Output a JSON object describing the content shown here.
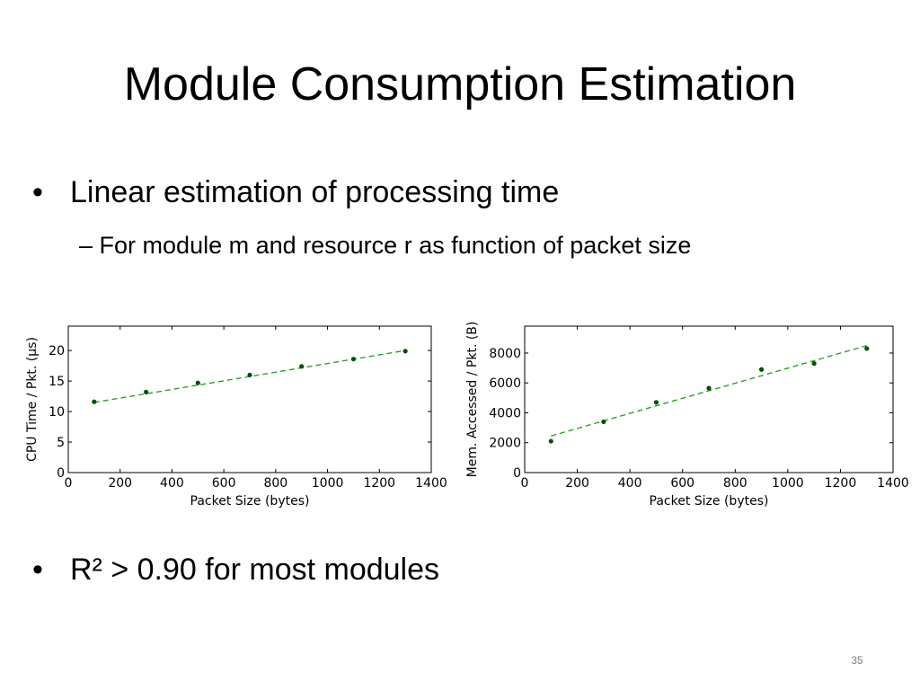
{
  "slide": {
    "title": "Module Consumption Estimation",
    "bullets": [
      {
        "marker": "•",
        "text": "Linear estimation of processing time"
      },
      {
        "marker": "•",
        "text": "R² > 0.90 for most modules"
      }
    ],
    "sub_bullet": {
      "marker": "–",
      "text": "For module m and resource r as function of packet size"
    },
    "page_number": "35"
  },
  "chart_data": [
    {
      "type": "scatter",
      "xlabel": "Packet Size (bytes)",
      "ylabel": "CPU Time / Pkt. (μs)",
      "xlim": [
        0,
        1400
      ],
      "ylim": [
        0,
        24
      ],
      "xticks": [
        0,
        200,
        400,
        600,
        800,
        1000,
        1200,
        1400
      ],
      "yticks": [
        0,
        5,
        10,
        15,
        20
      ],
      "grid": false,
      "points": [
        {
          "x": 100,
          "y": 11.6
        },
        {
          "x": 300,
          "y": 13.2
        },
        {
          "x": 500,
          "y": 14.7
        },
        {
          "x": 700,
          "y": 16.0
        },
        {
          "x": 900,
          "y": 17.4
        },
        {
          "x": 1100,
          "y": 18.6
        },
        {
          "x": 1300,
          "y": 19.9
        }
      ],
      "fit_line": [
        {
          "x": 100,
          "y": 11.5
        },
        {
          "x": 1300,
          "y": 20.0
        }
      ],
      "colors": {
        "points": "#0a4d0a",
        "fit": "#2ca02c"
      }
    },
    {
      "type": "scatter",
      "xlabel": "Packet Size (bytes)",
      "ylabel": "Mem. Accessed / Pkt. (B)",
      "xlim": [
        0,
        1400
      ],
      "ylim": [
        0,
        9800
      ],
      "xticks": [
        0,
        200,
        400,
        600,
        800,
        1000,
        1200,
        1400
      ],
      "yticks": [
        0,
        2000,
        4000,
        6000,
        8000
      ],
      "grid": false,
      "points": [
        {
          "x": 100,
          "y": 2100
        },
        {
          "x": 300,
          "y": 3400
        },
        {
          "x": 500,
          "y": 4700
        },
        {
          "x": 700,
          "y": 5650
        },
        {
          "x": 900,
          "y": 6900
        },
        {
          "x": 1100,
          "y": 7300
        },
        {
          "x": 1300,
          "y": 8300
        }
      ],
      "fit_line": [
        {
          "x": 100,
          "y": 2450
        },
        {
          "x": 1300,
          "y": 8500
        }
      ],
      "colors": {
        "points": "#0a4d0a",
        "fit": "#2ca02c"
      }
    }
  ]
}
